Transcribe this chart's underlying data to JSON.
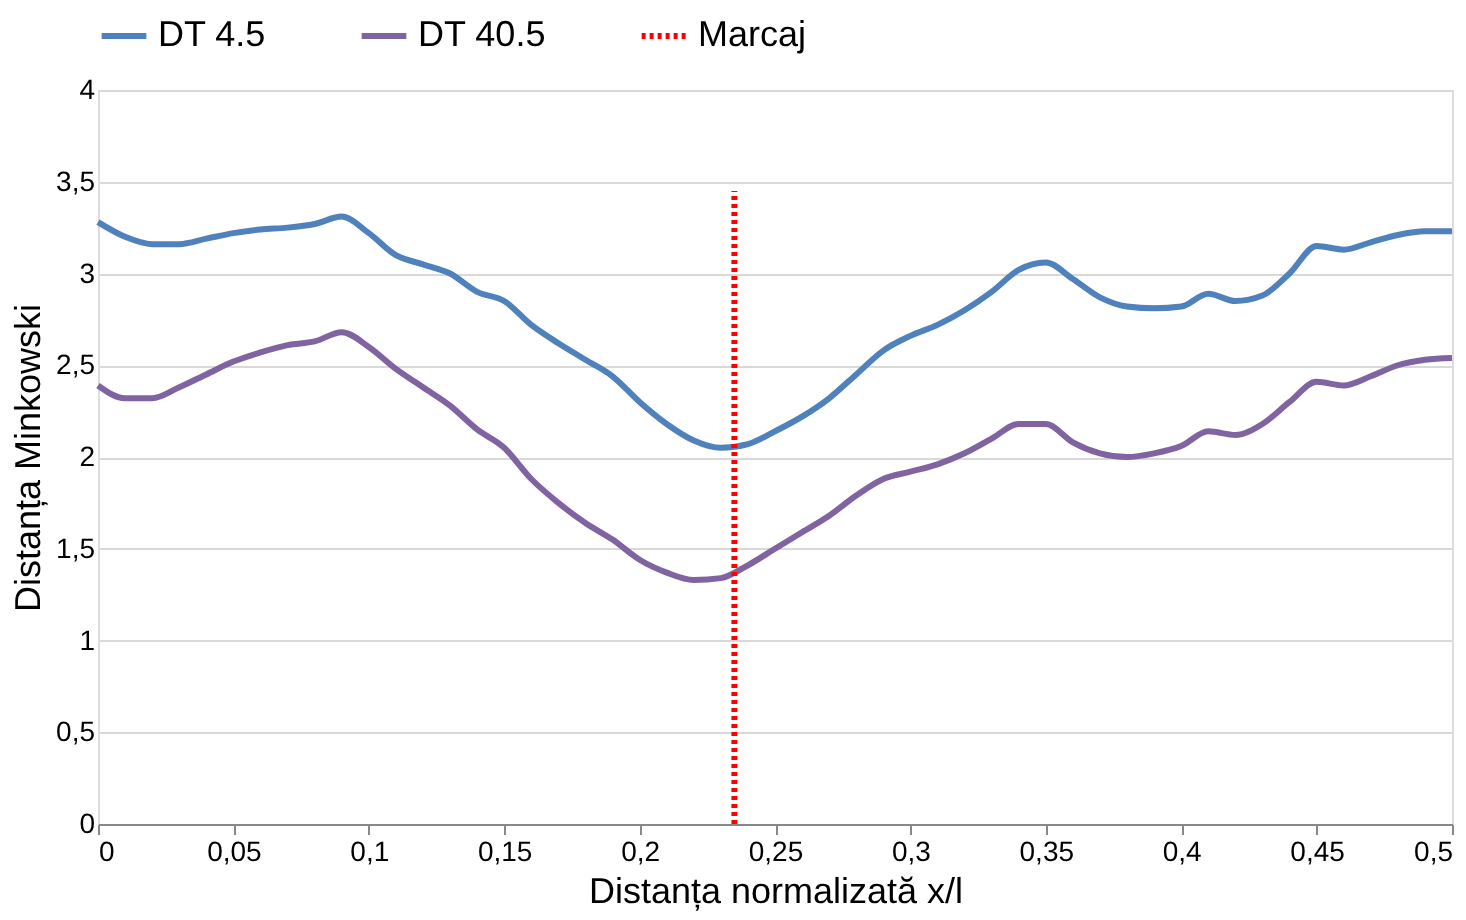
{
  "chart_data": {
    "type": "line",
    "xlabel": "Distanța normalizată x/l",
    "ylabel": "Distanța Minkowski",
    "x": [
      0,
      0.01,
      0.02,
      0.03,
      0.04,
      0.05,
      0.06,
      0.07,
      0.08,
      0.09,
      0.1,
      0.11,
      0.12,
      0.13,
      0.14,
      0.15,
      0.16,
      0.17,
      0.18,
      0.19,
      0.2,
      0.21,
      0.22,
      0.23,
      0.24,
      0.25,
      0.26,
      0.27,
      0.28,
      0.29,
      0.3,
      0.31,
      0.32,
      0.33,
      0.34,
      0.35,
      0.36,
      0.37,
      0.38,
      0.39,
      0.4,
      0.41,
      0.42,
      0.43,
      0.44,
      0.45,
      0.46,
      0.47,
      0.48,
      0.49,
      0.5
    ],
    "series": [
      {
        "name": "DT 4.5",
        "color": "#4f81bd",
        "line_style": "solid",
        "values": [
          3.28,
          3.2,
          3.16,
          3.16,
          3.19,
          3.22,
          3.24,
          3.25,
          3.27,
          3.31,
          3.22,
          3.1,
          3.05,
          3.0,
          2.9,
          2.85,
          2.72,
          2.62,
          2.53,
          2.44,
          2.3,
          2.18,
          2.09,
          2.05,
          2.07,
          2.14,
          2.22,
          2.32,
          2.45,
          2.58,
          2.66,
          2.72,
          2.8,
          2.9,
          3.02,
          3.06,
          2.97,
          2.87,
          2.82,
          2.81,
          2.82,
          2.89,
          2.85,
          2.88,
          3.0,
          3.15,
          3.13,
          3.17,
          3.21,
          3.23,
          3.23
        ]
      },
      {
        "name": "DT 40.5",
        "color": "#8064a2",
        "line_style": "solid",
        "values": [
          2.39,
          2.32,
          2.32,
          2.38,
          2.45,
          2.52,
          2.57,
          2.61,
          2.63,
          2.68,
          2.6,
          2.48,
          2.38,
          2.28,
          2.15,
          2.05,
          1.88,
          1.75,
          1.64,
          1.55,
          1.44,
          1.37,
          1.33,
          1.34,
          1.41,
          1.5,
          1.59,
          1.68,
          1.79,
          1.88,
          1.92,
          1.96,
          2.02,
          2.1,
          2.18,
          2.18,
          2.08,
          2.02,
          2.0,
          2.02,
          2.06,
          2.14,
          2.12,
          2.18,
          2.3,
          2.41,
          2.39,
          2.44,
          2.5,
          2.53,
          2.54
        ]
      },
      {
        "name": "Marcaj",
        "color": "#ff0000",
        "line_style": "dotted",
        "x": [
          0.235,
          0.235
        ],
        "values": [
          0,
          3.45
        ]
      }
    ],
    "xlim": [
      0,
      0.5
    ],
    "xticks": [
      0,
      {
        "value": 0.05,
        "label": "0,05"
      },
      {
        "value": 0.1,
        "label": "0,1"
      },
      {
        "value": 0.15,
        "label": "0,15"
      },
      {
        "value": 0.2,
        "label": "0,2"
      },
      {
        "value": 0.25,
        "label": "0,25"
      },
      {
        "value": 0.3,
        "label": "0,3"
      },
      {
        "value": 0.35,
        "label": "0,35"
      },
      {
        "value": 0.4,
        "label": "0,4"
      },
      {
        "value": 0.45,
        "label": "0,45"
      },
      {
        "value": 0.5,
        "label": "0,5"
      }
    ],
    "ylim": [
      0,
      4
    ],
    "yticks": [
      0,
      {
        "value": 0.5,
        "label": "0,5"
      },
      1,
      {
        "value": 1.5,
        "label": "1,5"
      },
      2,
      {
        "value": 2.5,
        "label": "2,5"
      },
      3,
      {
        "value": 3.5,
        "label": "3,5"
      },
      4
    ],
    "grid": "y",
    "legend": "top",
    "marker": "none"
  }
}
